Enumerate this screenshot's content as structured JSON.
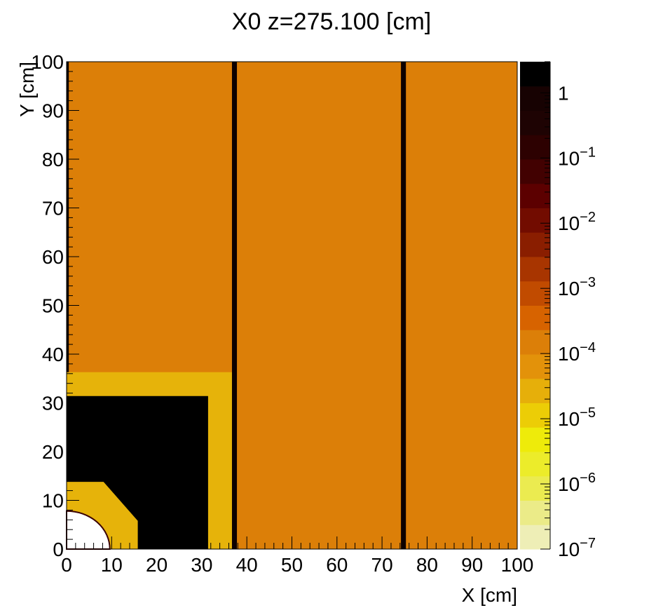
{
  "chart_data": {
    "type": "heatmap",
    "title": "X0 z=275.100 [cm]",
    "xlabel": "X [cm]",
    "ylabel": "Y [cm]",
    "xlim": [
      0,
      100
    ],
    "ylim": [
      0,
      100
    ],
    "zlim": [
      1e-07,
      3
    ],
    "zscale": "log",
    "xticks": [
      "0",
      "10",
      "20",
      "30",
      "40",
      "50",
      "60",
      "70",
      "80",
      "90",
      "100"
    ],
    "yticks": [
      "0",
      "10",
      "20",
      "30",
      "40",
      "50",
      "60",
      "70",
      "80",
      "90",
      "100"
    ],
    "zticks": [
      {
        "value": 1e-07,
        "base": "10",
        "exp": "−7"
      },
      {
        "value": 1e-06,
        "base": "10",
        "exp": "−6"
      },
      {
        "value": 1e-05,
        "base": "10",
        "exp": "−5"
      },
      {
        "value": 0.0001,
        "base": "10",
        "exp": "−4"
      },
      {
        "value": 0.001,
        "base": "10",
        "exp": "−3"
      },
      {
        "value": 0.01,
        "base": "10",
        "exp": "−2"
      },
      {
        "value": 0.1,
        "base": "10",
        "exp": "−1"
      },
      {
        "value": 1,
        "base": "1",
        "exp": ""
      }
    ],
    "palette": [
      "#eeeeb6",
      "#ebeb88",
      "#ebeb50",
      "#ecec2a",
      "#eeeb0a",
      "#eccd06",
      "#e6af0a",
      "#e3920a",
      "#dc7f08",
      "#d76300",
      "#c14b00",
      "#a83500",
      "#8a1e00",
      "#720c00",
      "#5c0000",
      "#420101",
      "#2d0101",
      "#1e0303",
      "#170202",
      "#000000"
    ],
    "regions": [
      {
        "name": "background",
        "x": [
          0,
          100
        ],
        "y": [
          0,
          100
        ],
        "value": 0.00012,
        "color": "#dc7f08"
      },
      {
        "name": "outer-frame",
        "x": [
          0,
          37.4
        ],
        "y": [
          0,
          36.3
        ],
        "value": 2.5e-05,
        "color": "#e6b30a"
      },
      {
        "name": "block",
        "x": [
          0,
          31.4
        ],
        "y": [
          0,
          31.4
        ],
        "value": 3,
        "color": "#000000"
      },
      {
        "name": "inner-octagon",
        "x": [
          0,
          15.8
        ],
        "y": [
          0,
          13.8
        ],
        "chamfer": [
          [
            8.2,
            13.8
          ],
          [
            15.8,
            5.8
          ]
        ],
        "value": 2.5e-05,
        "color": "#e6b30a"
      },
      {
        "name": "beam-hole",
        "rx": 9.6,
        "ry": 7.8,
        "value": 0,
        "color": "#ffffff",
        "edge": "#3a0202"
      },
      {
        "name": "wall-1",
        "x": [
          36.7,
          37.8
        ],
        "y": [
          0,
          100
        ],
        "value": 1,
        "color": "#0d0000"
      },
      {
        "name": "wall-2",
        "x": [
          74.2,
          75.3
        ],
        "y": [
          0,
          100
        ],
        "value": 1,
        "color": "#0d0000"
      },
      {
        "name": "edge-strip",
        "x": [
          0,
          0.5
        ],
        "y": [
          36.3,
          100
        ],
        "value": 1,
        "color": "#0d0000"
      }
    ]
  }
}
